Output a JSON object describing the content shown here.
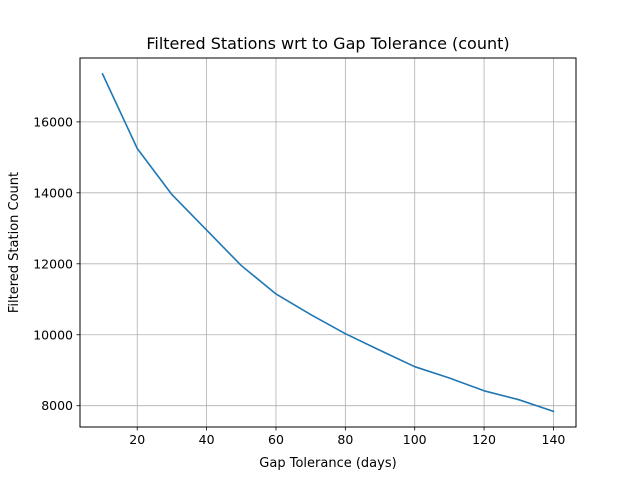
{
  "chart_data": {
    "type": "line",
    "title": "Filtered Stations wrt to Gap Tolerance (count)",
    "xlabel": "Gap Tolerance (days)",
    "ylabel": "Filtered Station Count",
    "x": [
      10,
      20,
      30,
      40,
      50,
      60,
      70,
      80,
      90,
      100,
      110,
      120,
      130,
      140
    ],
    "series": [
      {
        "color": "#1f77b4",
        "values": [
          17350,
          15250,
          13950,
          12950,
          11950,
          11150,
          10570,
          10030,
          9560,
          9100,
          8780,
          8420,
          8170,
          7840
        ]
      }
    ],
    "xlim": [
      3.5,
      146.5
    ],
    "ylim": [
      7400,
      17800
    ],
    "xticks": [
      20,
      40,
      60,
      80,
      100,
      120,
      140
    ],
    "yticks": [
      8000,
      10000,
      12000,
      14000,
      16000
    ],
    "xtick_labels": [
      "20",
      "40",
      "60",
      "80",
      "100",
      "120",
      "140"
    ],
    "ytick_labels": [
      "8000",
      "10000",
      "12000",
      "14000",
      "16000"
    ],
    "grid": true,
    "legend": "none"
  }
}
